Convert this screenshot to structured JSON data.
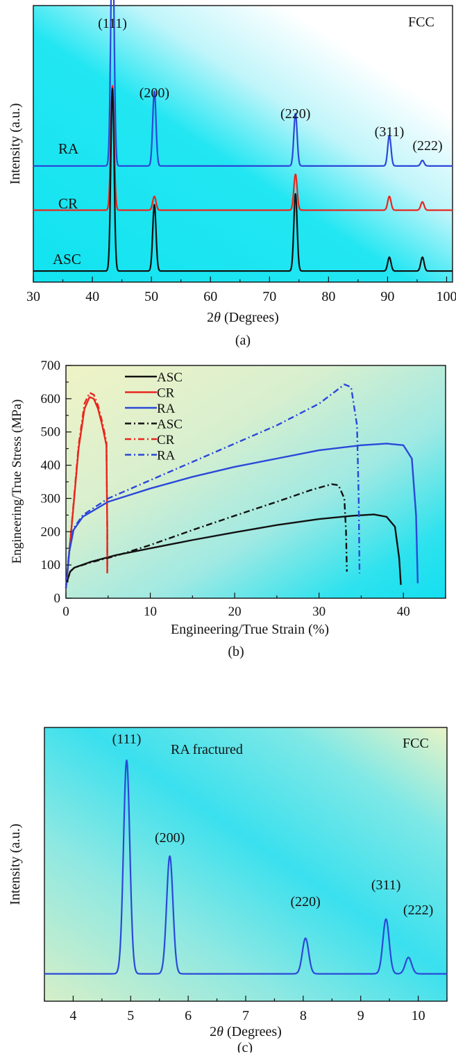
{
  "chart_data": [
    {
      "panel": "a",
      "type": "line",
      "caption": "(a)",
      "xlabel_prefix": "2",
      "xlabel_symbol": "θ",
      "xlabel_suffix": " (Degrees)",
      "ylabel": "Intensity (a.u.)",
      "phase_label": "FCC",
      "xlim": [
        30,
        101
      ],
      "xticks": [
        30,
        40,
        50,
        60,
        70,
        80,
        90,
        100
      ],
      "grid": false,
      "series": [
        {
          "name": "RA",
          "color": "#2a48d8",
          "baseline": 0.42,
          "peaks": [
            [
              43.4,
              0.87
            ],
            [
              50.5,
              0.27
            ],
            [
              74.4,
              0.19
            ],
            [
              90.3,
              0.11
            ],
            [
              95.9,
              0.02
            ]
          ]
        },
        {
          "name": "CR",
          "color": "#e8261e",
          "baseline": 0.26,
          "peaks": [
            [
              43.4,
              0.45
            ],
            [
              50.5,
              0.05
            ],
            [
              74.4,
              0.13
            ],
            [
              90.3,
              0.05
            ],
            [
              95.9,
              0.03
            ]
          ]
        },
        {
          "name": "ASC",
          "color": "#111111",
          "baseline": 0.04,
          "peaks": [
            [
              43.4,
              0.66
            ],
            [
              50.5,
              0.24
            ],
            [
              74.4,
              0.28
            ],
            [
              90.3,
              0.05
            ],
            [
              95.9,
              0.05
            ]
          ]
        }
      ],
      "annotations": [
        {
          "text": "(111)",
          "x": 43.4
        },
        {
          "text": "(200)",
          "x": 50.5
        },
        {
          "text": "(220)",
          "x": 74.4
        },
        {
          "text": "(311)",
          "x": 90.3
        },
        {
          "text": "(222)",
          "x": 96.5
        }
      ]
    },
    {
      "panel": "b",
      "type": "line",
      "caption": "(b)",
      "xlabel": "Engineering/True Strain (%)",
      "ylabel": "Engineering/True Stress (MPa)",
      "xlim": [
        0,
        45
      ],
      "ylim": [
        0,
        700
      ],
      "xticks": [
        0,
        10,
        20,
        30,
        40
      ],
      "yticks": [
        0,
        100,
        200,
        300,
        400,
        500,
        600,
        700
      ],
      "grid": false,
      "legend_position": "top-left",
      "series": [
        {
          "name": "ASC",
          "color": "#111111",
          "dash": "solid",
          "points": [
            [
              0,
              40
            ],
            [
              0.5,
              80
            ],
            [
              1,
              92
            ],
            [
              3,
              110
            ],
            [
              6,
              130
            ],
            [
              10,
              150
            ],
            [
              15,
              175
            ],
            [
              20,
              198
            ],
            [
              25,
              220
            ],
            [
              30,
              238
            ],
            [
              34,
              248
            ],
            [
              36.5,
              252
            ],
            [
              38,
              245
            ],
            [
              39,
              215
            ],
            [
              39.5,
              120
            ],
            [
              39.7,
              40
            ]
          ]
        },
        {
          "name": "CR",
          "color": "#e8261e",
          "dash": "solid",
          "points": [
            [
              0,
              30
            ],
            [
              0.8,
              250
            ],
            [
              1.5,
              450
            ],
            [
              2.2,
              570
            ],
            [
              2.8,
              605
            ],
            [
              3.3,
              600
            ],
            [
              3.8,
              570
            ],
            [
              4.3,
              520
            ],
            [
              4.8,
              460
            ],
            [
              4.9,
              200
            ],
            [
              4.9,
              75
            ]
          ]
        },
        {
          "name": "RA",
          "color": "#2a48d8",
          "dash": "solid",
          "points": [
            [
              0,
              30
            ],
            [
              0.4,
              140
            ],
            [
              0.9,
              205
            ],
            [
              2,
              245
            ],
            [
              5,
              290
            ],
            [
              10,
              330
            ],
            [
              15,
              365
            ],
            [
              20,
              395
            ],
            [
              25,
              420
            ],
            [
              30,
              445
            ],
            [
              35,
              460
            ],
            [
              38,
              465
            ],
            [
              40,
              460
            ],
            [
              41,
              420
            ],
            [
              41.5,
              250
            ],
            [
              41.7,
              45
            ]
          ]
        },
        {
          "name": "ASC",
          "color": "#111111",
          "dash": "dashdot",
          "points": [
            [
              0,
              40
            ],
            [
              0.5,
              80
            ],
            [
              1,
              92
            ],
            [
              3,
              108
            ],
            [
              6,
              128
            ],
            [
              10,
              160
            ],
            [
              15,
              205
            ],
            [
              20,
              248
            ],
            [
              25,
              290
            ],
            [
              29,
              325
            ],
            [
              31.5,
              343
            ],
            [
              32.3,
              340
            ],
            [
              33,
              300
            ],
            [
              33.2,
              200
            ],
            [
              33.3,
              80
            ]
          ]
        },
        {
          "name": "CR",
          "color": "#e8261e",
          "dash": "dashdot",
          "points": [
            [
              0,
              30
            ],
            [
              0.8,
              255
            ],
            [
              1.5,
              460
            ],
            [
              2.2,
              585
            ],
            [
              2.8,
              618
            ],
            [
              3.3,
              612
            ],
            [
              3.8,
              580
            ],
            [
              4.3,
              530
            ],
            [
              4.8,
              470
            ],
            [
              4.9,
              200
            ],
            [
              4.9,
              80
            ]
          ]
        },
        {
          "name": "RA",
          "color": "#2a48d8",
          "dash": "dashdot",
          "points": [
            [
              0,
              30
            ],
            [
              0.4,
              145
            ],
            [
              0.9,
              210
            ],
            [
              2,
              250
            ],
            [
              5,
              300
            ],
            [
              10,
              355
            ],
            [
              15,
              410
            ],
            [
              20,
              465
            ],
            [
              25,
              520
            ],
            [
              30,
              585
            ],
            [
              32.5,
              633
            ],
            [
              33,
              643
            ],
            [
              33.8,
              635
            ],
            [
              34.5,
              520
            ],
            [
              34.7,
              300
            ],
            [
              34.8,
              75
            ]
          ]
        }
      ]
    },
    {
      "panel": "c",
      "type": "line",
      "caption": "(c)",
      "xlabel_prefix": "2",
      "xlabel_symbol": "θ",
      "xlabel_suffix": " (Degrees)",
      "ylabel": "Intensity (a.u.)",
      "phase_label": "FCC",
      "sample_label": "RA fractured",
      "xlim": [
        3.5,
        10.5
      ],
      "xticks": [
        4,
        5,
        6,
        7,
        8,
        9,
        10
      ],
      "grid": false,
      "series": [
        {
          "name": "RA fractured",
          "color": "#2a48d8",
          "baseline": 0.1,
          "peaks": [
            [
              4.93,
              0.78
            ],
            [
              5.68,
              0.43
            ],
            [
              8.04,
              0.13
            ],
            [
              9.44,
              0.2
            ],
            [
              9.83,
              0.06
            ]
          ]
        }
      ],
      "annotations": [
        {
          "text": "(111)",
          "x": 4.93
        },
        {
          "text": "(200)",
          "x": 5.68
        },
        {
          "text": "(220)",
          "x": 8.04
        },
        {
          "text": "(311)",
          "x": 9.44
        },
        {
          "text": "(222)",
          "x": 10.0
        }
      ]
    }
  ]
}
